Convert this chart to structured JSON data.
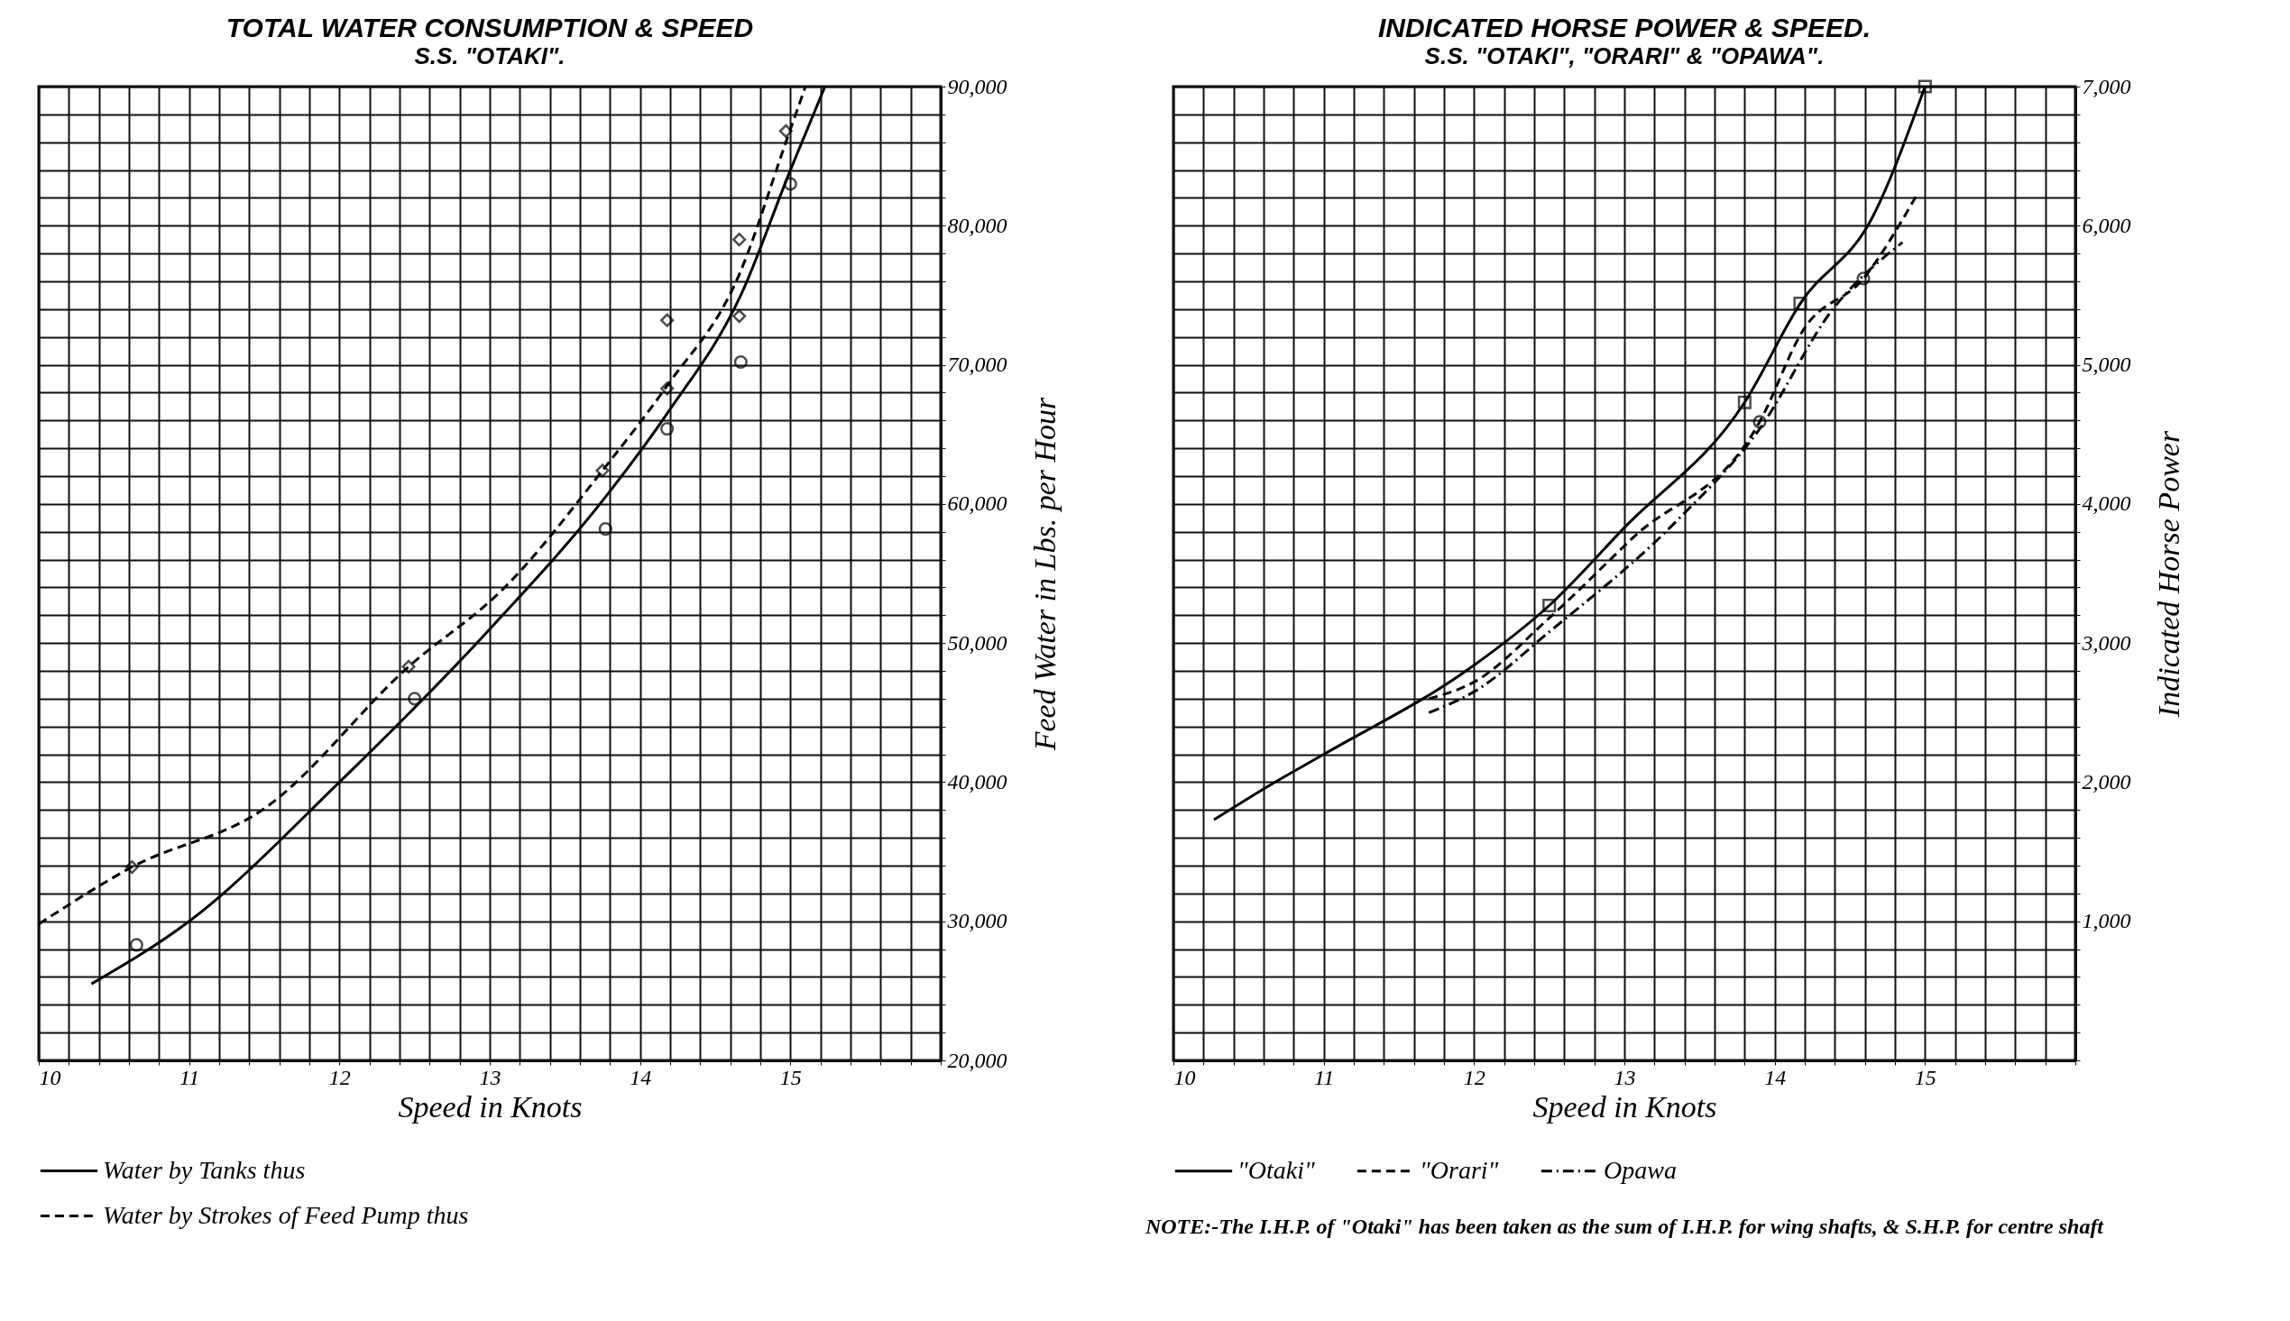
{
  "chart_data": [
    {
      "type": "line",
      "title": "TOTAL WATER CONSUMPTION & SPEED",
      "subtitle": "S.S. \"OTAKI\".",
      "xlabel": "Speed in Knots",
      "ylabel": "Feed Water in Lbs. per Hour",
      "xlim": [
        10,
        16
      ],
      "ylim": [
        20000,
        90000
      ],
      "xticks": [
        10,
        {
          "value": 10.2,
          "label": null
        },
        {
          "value": 10.4,
          "label": null
        },
        {
          "value": 10.6,
          "label": null
        },
        {
          "value": 10.8,
          "label": null
        },
        11,
        {
          "value": 11.2,
          "label": null
        },
        {
          "value": 11.4,
          "label": null
        },
        {
          "value": 11.6,
          "label": null
        },
        {
          "value": 11.8,
          "label": null
        },
        12,
        {
          "value": 12.2,
          "label": null
        },
        {
          "value": 12.4,
          "label": null
        },
        {
          "value": 12.6,
          "label": null
        },
        {
          "value": 12.8,
          "label": null
        },
        13,
        {
          "value": 13.2,
          "label": null
        },
        {
          "value": 13.4,
          "label": null
        },
        {
          "value": 13.6,
          "label": null
        },
        {
          "value": 13.8,
          "label": null
        },
        14,
        {
          "value": 14.2,
          "label": null
        },
        {
          "value": 14.4,
          "label": null
        },
        {
          "value": 14.6,
          "label": null
        },
        {
          "value": 14.8,
          "label": null
        },
        15,
        {
          "value": 15.2,
          "label": null
        },
        {
          "value": 15.4,
          "label": null
        },
        {
          "value": 15.6,
          "label": null
        },
        {
          "value": 15.8,
          "label": null
        },
        {
          "value": 16,
          "label": null
        }
      ],
      "yticks": [
        {
          "value": 20000,
          "label": "20,000"
        },
        {
          "value": 22000,
          "label": null
        },
        {
          "value": 24000,
          "label": null
        },
        {
          "value": 26000,
          "label": null
        },
        {
          "value": 28000,
          "label": null
        },
        {
          "value": 30000,
          "label": "30,000"
        },
        {
          "value": 32000,
          "label": null
        },
        {
          "value": 34000,
          "label": null
        },
        {
          "value": 36000,
          "label": null
        },
        {
          "value": 38000,
          "label": null
        },
        {
          "value": 40000,
          "label": "40,000"
        },
        {
          "value": 42000,
          "label": null
        },
        {
          "value": 44000,
          "label": null
        },
        {
          "value": 46000,
          "label": null
        },
        {
          "value": 48000,
          "label": null
        },
        {
          "value": 50000,
          "label": "50,000"
        },
        {
          "value": 52000,
          "label": null
        },
        {
          "value": 54000,
          "label": null
        },
        {
          "value": 56000,
          "label": null
        },
        {
          "value": 58000,
          "label": null
        },
        {
          "value": 60000,
          "label": "60,000"
        },
        {
          "value": 62000,
          "label": null
        },
        {
          "value": 64000,
          "label": null
        },
        {
          "value": 66000,
          "label": null
        },
        {
          "value": 68000,
          "label": null
        },
        {
          "value": 70000,
          "label": "70,000"
        },
        {
          "value": 72000,
          "label": null
        },
        {
          "value": 74000,
          "label": null
        },
        {
          "value": 76000,
          "label": null
        },
        {
          "value": 78000,
          "label": null
        },
        {
          "value": 80000,
          "label": "80,000"
        },
        {
          "value": 82000,
          "label": null
        },
        {
          "value": 84000,
          "label": null
        },
        {
          "value": 86000,
          "label": null
        },
        {
          "value": 88000,
          "label": null
        },
        {
          "value": 90000,
          "label": "90,000"
        }
      ],
      "grid": true,
      "legend": "bottom",
      "series": [
        {
          "name": "Water by Tanks thus",
          "type": "line",
          "line_style": "solid",
          "color": "#000000",
          "x": [
            10.35,
            11,
            12,
            13,
            13.77,
            14.18,
            14.67,
            15.0,
            15.23
          ],
          "values": [
            25500,
            30000,
            40000,
            51000,
            60500,
            66500,
            75000,
            84000,
            90000
          ]
        },
        {
          "type": "scatter",
          "marker": "circle",
          "color": "#000000",
          "x": [
            10.65,
            12.5,
            13.77,
            14.18,
            14.67,
            15.0
          ],
          "values": [
            28300,
            46000,
            58200,
            65400,
            70200,
            83000
          ]
        },
        {
          "name": "Water by Strokes of Feed Pump thus",
          "type": "line",
          "line_style": "dashed",
          "color": "#000000",
          "x": [
            10,
            10.62,
            11.5,
            12.46,
            13.1,
            13.75,
            14.18,
            14.66,
            14.97,
            15.1
          ],
          "values": [
            29800,
            33900,
            38100,
            48300,
            54000,
            62400,
            68500,
            76500,
            86000,
            90000
          ]
        },
        {
          "type": "scatter",
          "marker": "diamond",
          "color": "#000000",
          "x": [
            10.62,
            12.46,
            13.75,
            14.18,
            14.18,
            14.66,
            14.66,
            14.97
          ],
          "values": [
            33900,
            48300,
            62400,
            68300,
            73200,
            73500,
            79000,
            86800
          ]
        }
      ]
    },
    {
      "type": "line",
      "title": "INDICATED HORSE POWER & SPEED.",
      "subtitle": "S.S. \"OTAKI\", \"ORARI\" & \"OPAWA\".",
      "xlabel": "Speed in Knots",
      "ylabel": "Indicated Horse Power",
      "xlim": [
        10,
        16
      ],
      "ylim": [
        0,
        7000
      ],
      "xticks": [
        10,
        {
          "value": 10.2,
          "label": null
        },
        {
          "value": 10.4,
          "label": null
        },
        {
          "value": 10.6,
          "label": null
        },
        {
          "value": 10.8,
          "label": null
        },
        11,
        {
          "value": 11.2,
          "label": null
        },
        {
          "value": 11.4,
          "label": null
        },
        {
          "value": 11.6,
          "label": null
        },
        {
          "value": 11.8,
          "label": null
        },
        12,
        {
          "value": 12.2,
          "label": null
        },
        {
          "value": 12.4,
          "label": null
        },
        {
          "value": 12.6,
          "label": null
        },
        {
          "value": 12.8,
          "label": null
        },
        13,
        {
          "value": 13.2,
          "label": null
        },
        {
          "value": 13.4,
          "label": null
        },
        {
          "value": 13.6,
          "label": null
        },
        {
          "value": 13.8,
          "label": null
        },
        14,
        {
          "value": 14.2,
          "label": null
        },
        {
          "value": 14.4,
          "label": null
        },
        {
          "value": 14.6,
          "label": null
        },
        {
          "value": 14.8,
          "label": null
        },
        15,
        {
          "value": 15.2,
          "label": null
        },
        {
          "value": 15.4,
          "label": null
        },
        {
          "value": 15.6,
          "label": null
        },
        {
          "value": 15.8,
          "label": null
        },
        {
          "value": 16,
          "label": null
        }
      ],
      "yticks": [
        {
          "value": 0,
          "label": null
        },
        {
          "value": 200,
          "label": null
        },
        {
          "value": 400,
          "label": null
        },
        {
          "value": 600,
          "label": null
        },
        {
          "value": 800,
          "label": null
        },
        {
          "value": 1000,
          "label": "1,000"
        },
        {
          "value": 1200,
          "label": null
        },
        {
          "value": 1400,
          "label": null
        },
        {
          "value": 1600,
          "label": null
        },
        {
          "value": 1800,
          "label": null
        },
        {
          "value": 2000,
          "label": "2,000"
        },
        {
          "value": 2200,
          "label": null
        },
        {
          "value": 2400,
          "label": null
        },
        {
          "value": 2600,
          "label": null
        },
        {
          "value": 2800,
          "label": null
        },
        {
          "value": 3000,
          "label": "3,000"
        },
        {
          "value": 3200,
          "label": null
        },
        {
          "value": 3400,
          "label": null
        },
        {
          "value": 3600,
          "label": null
        },
        {
          "value": 3800,
          "label": null
        },
        {
          "value": 4000,
          "label": "4,000"
        },
        {
          "value": 4200,
          "label": null
        },
        {
          "value": 4400,
          "label": null
        },
        {
          "value": 4600,
          "label": null
        },
        {
          "value": 4800,
          "label": null
        },
        {
          "value": 5000,
          "label": "5,000"
        },
        {
          "value": 5200,
          "label": null
        },
        {
          "value": 5400,
          "label": null
        },
        {
          "value": 5600,
          "label": null
        },
        {
          "value": 5800,
          "label": null
        },
        {
          "value": 6000,
          "label": "6,000"
        },
        {
          "value": 6200,
          "label": null
        },
        {
          "value": 6400,
          "label": null
        },
        {
          "value": 6600,
          "label": null
        },
        {
          "value": 6800,
          "label": null
        },
        {
          "value": 7000,
          "label": "7,000"
        }
      ],
      "grid": true,
      "legend": "bottom",
      "annotations": [
        "NOTE:-The I.H.P. of \"Otaki\" has been taken as the sum of I.H.P. for wing shafts, & S.H.P. for centre shaft"
      ],
      "series": [
        {
          "name": "\"Otaki\"",
          "type": "line",
          "line_style": "solid",
          "color": "#000000",
          "x": [
            10.27,
            10.66,
            11,
            12,
            12.5,
            13,
            13.8,
            14.17,
            14.65,
            15.0
          ],
          "values": [
            1730,
            1990,
            2200,
            2840,
            3270,
            3830,
            4730,
            5440,
            6060,
            7000
          ]
        },
        {
          "type": "scatter",
          "marker": "square",
          "color": "#000000",
          "x": [
            12.5,
            13.8,
            14.17,
            15.0
          ],
          "values": [
            3270,
            4730,
            5440,
            7000
          ]
        },
        {
          "name": "\"Orari\"",
          "type": "line",
          "line_style": "dashed",
          "color": "#000000",
          "x": [
            11.7,
            12.0,
            12.5,
            13.06,
            13.9,
            14.19,
            14.59,
            14.94
          ],
          "values": [
            2600,
            2720,
            3180,
            3760,
            4590,
            5250,
            5620,
            6210
          ]
        },
        {
          "type": "scatter",
          "marker": "circle",
          "color": "#000000",
          "x": [
            13.9,
            14.59
          ],
          "values": [
            4590,
            5620
          ]
        },
        {
          "name": "Opawa",
          "type": "line",
          "line_style": "dashdot",
          "color": "#000000",
          "x": [
            11.7,
            12.0,
            12.5,
            13.35,
            13.9,
            14.38,
            14.85
          ],
          "values": [
            2500,
            2650,
            3080,
            3880,
            4540,
            5390,
            5880
          ]
        }
      ]
    }
  ]
}
